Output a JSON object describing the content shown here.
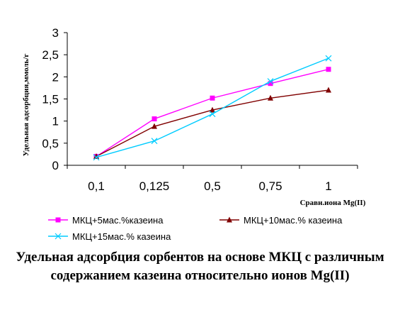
{
  "chart_data": {
    "type": "line",
    "categories": [
      "0,1",
      "0,125",
      "0,5",
      "0,75",
      "1"
    ],
    "ylim": [
      0,
      3
    ],
    "yticks": [
      "0",
      "0,5",
      "1",
      "1,5",
      "2",
      "2,5",
      "3"
    ],
    "xlabel": "Сравн.иона Mg(II)",
    "ylabel": "Удельная адсорбция,ммоль/г",
    "grid": false,
    "legend": "bottom",
    "series": [
      {
        "name": "МКЦ+5мас.%казеина",
        "values": [
          0.2,
          1.05,
          1.52,
          1.85,
          2.17
        ],
        "color": "#ff00ff",
        "marker": "square"
      },
      {
        "name": "МКЦ+10мас.% казеина",
        "values": [
          0.2,
          0.88,
          1.25,
          1.52,
          1.7
        ],
        "color": "#800000",
        "marker": "triangle"
      },
      {
        "name": "МКЦ+15мас.% казеина",
        "values": [
          0.18,
          0.55,
          1.16,
          1.9,
          2.42
        ],
        "color": "#00ccff",
        "marker": "x"
      }
    ]
  },
  "caption": "Удельная адсорбция сорбентов на основе МКЦ с различным содержанием казеина относительно ионов Mg(II)"
}
